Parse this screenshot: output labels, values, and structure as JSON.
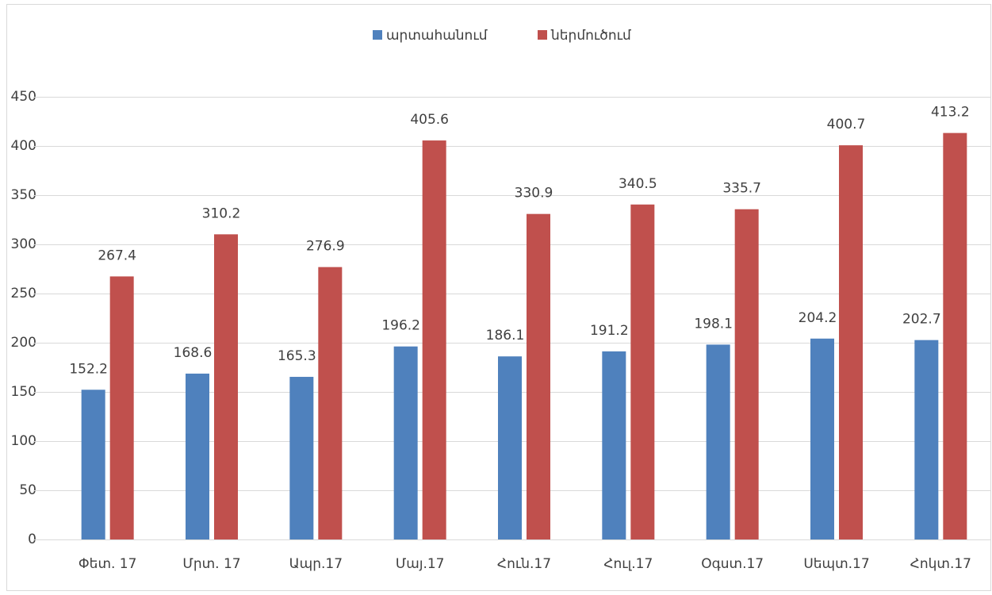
{
  "chart_data": {
    "type": "bar",
    "categories": [
      "Փետ. 17",
      "Մրտ. 17",
      "Ապր.17",
      "Մայ.17",
      "Հուն.17",
      "Հուլ.17",
      "Օգստ.17",
      "Սեպտ.17",
      "Հոկտ.17"
    ],
    "series": [
      {
        "name": "արտահանում",
        "color": "#4f81bd",
        "values": [
          152.2,
          168.6,
          165.3,
          196.2,
          186.1,
          191.2,
          198.1,
          204.2,
          202.7
        ]
      },
      {
        "name": "ներմուծում",
        "color": "#c0504d",
        "values": [
          267.4,
          310.2,
          276.9,
          405.6,
          330.9,
          340.5,
          335.7,
          400.7,
          413.2
        ]
      }
    ],
    "ylim": [
      0,
      450
    ],
    "yticks": [
      0,
      50,
      100,
      150,
      200,
      250,
      300,
      350,
      400,
      450
    ],
    "grid": true,
    "legend": "top"
  }
}
